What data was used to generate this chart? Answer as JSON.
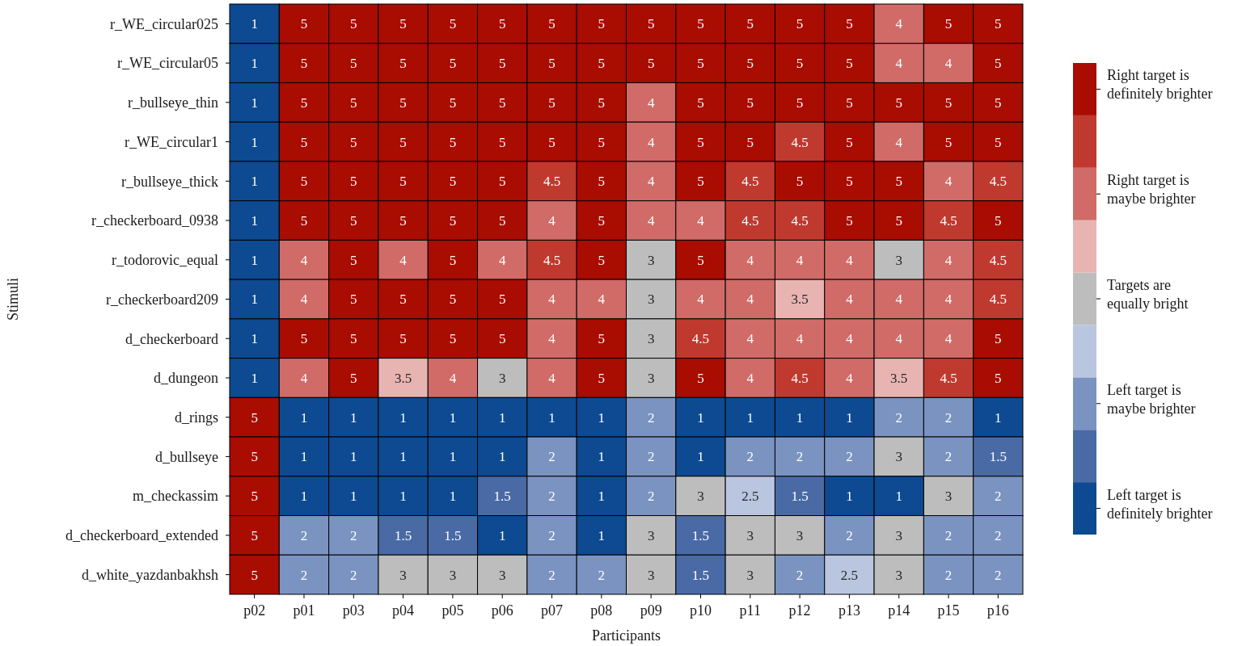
{
  "chart_data": {
    "type": "heatmap",
    "xlabel": "Participants",
    "ylabel": "Stimuli",
    "categories": [
      "p02",
      "p01",
      "p03",
      "p04",
      "p05",
      "p06",
      "p07",
      "p08",
      "p09",
      "p10",
      "p11",
      "p12",
      "p13",
      "p14",
      "p15",
      "p16"
    ],
    "y_categories": [
      "r_WE_circular025",
      "r_WE_circular05",
      "r_bullseye_thin",
      "r_WE_circular1",
      "r_bullseye_thick",
      "r_checkerboard_0938",
      "r_todorovic_equal",
      "r_checkerboard209",
      "d_checkerboard",
      "d_dungeon",
      "d_rings",
      "d_bullseye",
      "m_checkassim",
      "d_checkerboard_extended",
      "d_white_yazdanbakhsh"
    ],
    "cells": [
      [
        1,
        5,
        5,
        5,
        5,
        5,
        5,
        5,
        5,
        5,
        5,
        5,
        5,
        4,
        5,
        5
      ],
      [
        1,
        5,
        5,
        5,
        5,
        5,
        5,
        5,
        5,
        5,
        5,
        5,
        5,
        4,
        4,
        5
      ],
      [
        1,
        5,
        5,
        5,
        5,
        5,
        5,
        5,
        4,
        5,
        5,
        5,
        5,
        5,
        5,
        5
      ],
      [
        1,
        5,
        5,
        5,
        5,
        5,
        5,
        5,
        4,
        5,
        5,
        4.5,
        5,
        4,
        5,
        5
      ],
      [
        1,
        5,
        5,
        5,
        5,
        5,
        4.5,
        5,
        4,
        5,
        4.5,
        5,
        5,
        5,
        4,
        4.5
      ],
      [
        1,
        5,
        5,
        5,
        5,
        5,
        4,
        5,
        4,
        4,
        4.5,
        4.5,
        5,
        5,
        4.5,
        5
      ],
      [
        1,
        4,
        5,
        4,
        5,
        4,
        4.5,
        5,
        3,
        5,
        4,
        4,
        4,
        3,
        4,
        4.5
      ],
      [
        1,
        4,
        5,
        5,
        5,
        5,
        4,
        4,
        3,
        4,
        4,
        3.5,
        4,
        4,
        4,
        4.5
      ],
      [
        1,
        5,
        5,
        5,
        5,
        5,
        4,
        5,
        3,
        4.5,
        4,
        4,
        4,
        4,
        4,
        5
      ],
      [
        1,
        4,
        5,
        3.5,
        4,
        3,
        4,
        5,
        3,
        5,
        4,
        4.5,
        4,
        3.5,
        4.5,
        5
      ],
      [
        5,
        1,
        1,
        1,
        1,
        1,
        1,
        1,
        2,
        1,
        1,
        1,
        1,
        2,
        2,
        1
      ],
      [
        5,
        1,
        1,
        1,
        1,
        1,
        2,
        1,
        2,
        1,
        2,
        2,
        2,
        3,
        2,
        1.5
      ],
      [
        5,
        1,
        1,
        1,
        1,
        1.5,
        2,
        1,
        2,
        3,
        2.5,
        1.5,
        1,
        1,
        3,
        2
      ],
      [
        5,
        2,
        2,
        1.5,
        1.5,
        1,
        2,
        1,
        3,
        1.5,
        3,
        3,
        2,
        3,
        2,
        2
      ],
      [
        5,
        2,
        2,
        3,
        3,
        3,
        2,
        2,
        3,
        1.5,
        3,
        2,
        2.5,
        3,
        2,
        2
      ]
    ],
    "data_labels": true,
    "clim": [
      0.75,
      5.25
    ],
    "colors": [
      "#0d4a91",
      "#4a6aa6",
      "#7a93c0",
      "#bac6e0",
      "#bdbdbd",
      "#e8b4b2",
      "#d06b67",
      "#c0392f",
      "#a90c00"
    ],
    "cticks": [
      {
        "value": 1,
        "label": "Left target is definitely brighter"
      },
      {
        "value": 2,
        "label": "Left target is maybe brighter"
      },
      {
        "value": 3,
        "label": "Targets are equally bright"
      },
      {
        "value": 4,
        "label": "Right target is maybe brighter"
      },
      {
        "value": 5,
        "label": "Right target is definitely brighter"
      }
    ]
  }
}
